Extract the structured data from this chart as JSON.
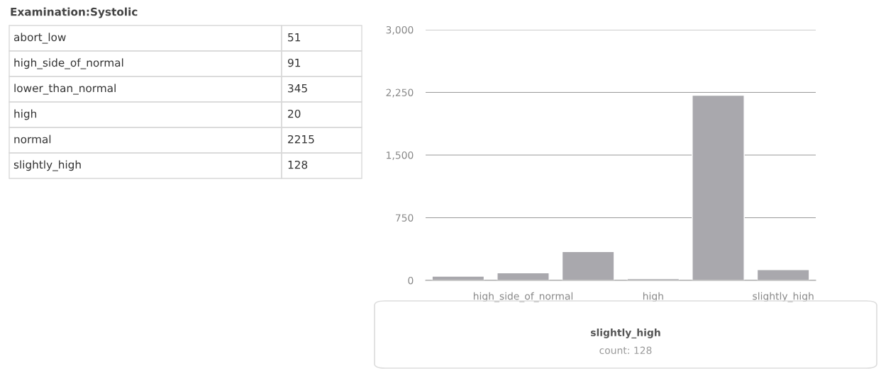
{
  "chart_data": [
    {
      "type": "other",
      "title": "Examination:Systolic",
      "categories": [
        "abort_low",
        "high_side_of_normal",
        "lower_than_normal",
        "high",
        "normal",
        "slightly_high"
      ],
      "values": [
        51,
        91,
        345,
        20,
        2215,
        128
      ],
      "data_labels": true
    },
    {
      "type": "bar",
      "categories": [
        null,
        "high_side_of_normal",
        null,
        "high",
        null,
        "slightly_high"
      ],
      "values": [
        51,
        91,
        345,
        20,
        2215,
        128
      ],
      "color": "#a9a8ad",
      "ylim": [
        0,
        3000
      ],
      "yticks": [
        0,
        {
          "value": 750,
          "label": "750"
        },
        {
          "value": 1500,
          "label": "1,500"
        },
        {
          "value": 2250,
          "label": "2,250"
        },
        {
          "value": 3000,
          "label": "3,000"
        }
      ],
      "grid": "y",
      "annotations": [
        "slightly_high",
        "count: 128"
      ]
    }
  ]
}
